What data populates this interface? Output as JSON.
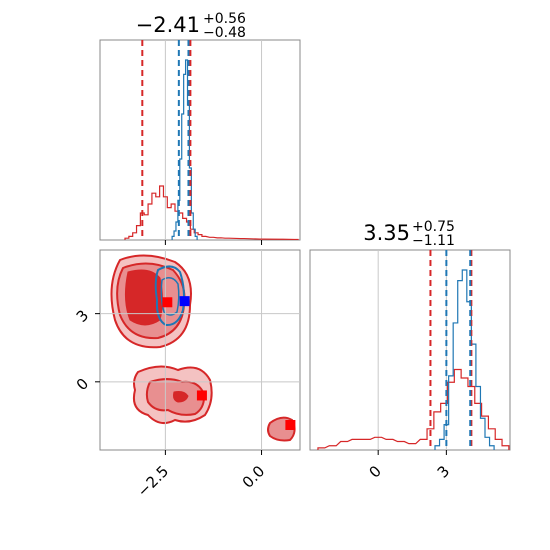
{
  "colors": {
    "red": "#d62728",
    "blue": "#1f77b4",
    "red_fill_light": "#f4c2c2",
    "red_fill_mid": "#e88f90",
    "marker_blue": "#0000ff",
    "marker_red": "#ff0000"
  },
  "chart_data": {
    "type": "corner",
    "parameters": [
      {
        "title": {
          "median": "−2.41",
          "plus": "+0.56",
          "minus": "−0.48"
        },
        "range": [
          -4.2,
          1.0
        ],
        "ticks": [
          -2.5,
          0.0
        ],
        "tick_labels": [
          "−2.5",
          "0.0"
        ],
        "quantiles_red": [
          -3.1,
          -1.85
        ],
        "quantiles_blue": [
          -2.15,
          -1.9
        ],
        "hist_red": [
          [
            -3.5,
            0.01
          ],
          [
            -3.4,
            0.02
          ],
          [
            -3.3,
            0.04
          ],
          [
            -3.2,
            0.08
          ],
          [
            -3.1,
            0.15
          ],
          [
            -3.0,
            0.14
          ],
          [
            -2.9,
            0.2
          ],
          [
            -2.8,
            0.26
          ],
          [
            -2.7,
            0.24
          ],
          [
            -2.6,
            0.3
          ],
          [
            -2.5,
            0.24
          ],
          [
            -2.4,
            0.18
          ],
          [
            -2.3,
            0.2
          ],
          [
            -2.2,
            0.16
          ],
          [
            -2.1,
            0.15
          ],
          [
            -2.0,
            0.12
          ],
          [
            -1.9,
            0.1
          ],
          [
            -1.8,
            0.06
          ],
          [
            -1.7,
            0.04
          ],
          [
            -1.6,
            0.03
          ],
          [
            -1.5,
            0.02
          ],
          [
            -1.3,
            0.015
          ],
          [
            -1.1,
            0.012
          ],
          [
            -0.9,
            0.01
          ],
          [
            -0.5,
            0.008
          ],
          [
            0.0,
            0.005
          ],
          [
            0.5,
            0.004
          ],
          [
            0.9,
            0.003
          ]
        ],
        "hist_blue": [
          [
            -2.3,
            0.02
          ],
          [
            -2.25,
            0.05
          ],
          [
            -2.2,
            0.1
          ],
          [
            -2.15,
            0.22
          ],
          [
            -2.1,
            0.45
          ],
          [
            -2.05,
            0.7
          ],
          [
            -2.0,
            0.92
          ],
          [
            -1.95,
            1.0
          ],
          [
            -1.9,
            0.75
          ],
          [
            -1.85,
            0.4
          ],
          [
            -1.8,
            0.15
          ],
          [
            -1.75,
            0.06
          ],
          [
            -1.7,
            0.02
          ]
        ]
      },
      {
        "title": {
          "median": "3.35",
          "plus": "+0.75",
          "minus": "−1.11"
        },
        "range": [
          -3.0,
          5.8
        ],
        "ticks": [
          0,
          3
        ],
        "tick_labels": [
          "0",
          "3"
        ],
        "quantiles_red": [
          2.3,
          4.1
        ],
        "quantiles_blue": [
          3.0,
          4.05
        ],
        "hist_red": [
          [
            -2.5,
            0.01
          ],
          [
            -2.0,
            0.02
          ],
          [
            -1.5,
            0.04
          ],
          [
            -1.0,
            0.05
          ],
          [
            -0.5,
            0.05
          ],
          [
            0.0,
            0.06
          ],
          [
            0.5,
            0.05
          ],
          [
            1.0,
            0.04
          ],
          [
            1.5,
            0.03
          ],
          [
            2.0,
            0.05
          ],
          [
            2.3,
            0.1
          ],
          [
            2.6,
            0.18
          ],
          [
            2.9,
            0.22
          ],
          [
            3.2,
            0.32
          ],
          [
            3.5,
            0.38
          ],
          [
            3.8,
            0.34
          ],
          [
            4.1,
            0.3
          ],
          [
            4.4,
            0.22
          ],
          [
            4.7,
            0.16
          ],
          [
            5.0,
            0.1
          ],
          [
            5.3,
            0.05
          ],
          [
            5.6,
            0.02
          ]
        ],
        "hist_blue": [
          [
            2.6,
            0.02
          ],
          [
            2.8,
            0.05
          ],
          [
            3.0,
            0.12
          ],
          [
            3.2,
            0.35
          ],
          [
            3.4,
            0.6
          ],
          [
            3.6,
            0.8
          ],
          [
            3.8,
            0.85
          ],
          [
            4.0,
            0.7
          ],
          [
            4.2,
            0.5
          ],
          [
            4.4,
            0.3
          ],
          [
            4.6,
            0.15
          ],
          [
            4.8,
            0.06
          ],
          [
            5.0,
            0.02
          ]
        ]
      }
    ],
    "scatter_2d": {
      "x_range": [
        -4.2,
        1.0
      ],
      "y_range": [
        -3.0,
        5.8
      ],
      "x_ticks": [
        -2.5,
        0.0
      ],
      "y_ticks": [
        0,
        3
      ],
      "y_tick_labels": [
        "0",
        "3"
      ],
      "markers": [
        {
          "x": -2.45,
          "y": 3.5,
          "color": "#ff0000"
        },
        {
          "x": -2.0,
          "y": 3.55,
          "color": "#0000ff"
        },
        {
          "x": -1.55,
          "y": -0.6,
          "color": "#ff0000"
        },
        {
          "x": 0.75,
          "y": -1.9,
          "color": "#ff0000"
        }
      ]
    }
  }
}
